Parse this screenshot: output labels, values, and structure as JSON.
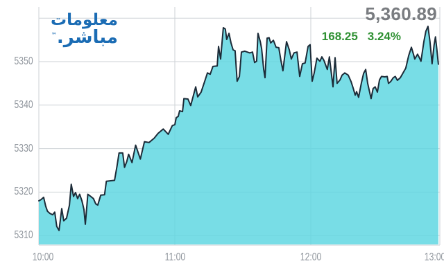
{
  "logo": {
    "line1": "معلومات",
    "line2": "مباشر.",
    "trademark": "™",
    "color": "#1b6cb4"
  },
  "quote": {
    "last_price": "5,360.89",
    "change": "168.25",
    "change_percent": "3.24%",
    "price_color": "#797c80",
    "change_color": "#2e9032"
  },
  "chart_data": {
    "type": "area",
    "title": "",
    "xlabel": "",
    "ylabel": "",
    "x_unit": "minutes after 10:00",
    "x_tick_labels": [
      "10:00",
      "11:00",
      "12:00",
      "13:00"
    ],
    "x_tick_minutes": [
      0,
      60,
      120,
      180
    ],
    "x_grid_minutes": [
      60,
      120
    ],
    "y_ticks": [
      5350,
      5340,
      5330,
      5320,
      5310
    ],
    "y_gridlines": [
      5360,
      5350,
      5340,
      5330,
      5320,
      5310
    ],
    "ylim": [
      5307.5,
      5362.5
    ],
    "xlim_minutes": [
      0,
      177
    ],
    "grid": true,
    "legend": false,
    "fill_color": "rgba(90,214,225,0.82)",
    "line_color": "#1c2b38",
    "grid_color": "#cdd2d6",
    "axis_text_color": "#8f959c",
    "points": [
      [
        0,
        5318.0
      ],
      [
        1.0,
        5318.3
      ],
      [
        2.1,
        5318.8
      ],
      [
        3.0,
        5316.8
      ],
      [
        3.8,
        5315.6
      ],
      [
        4.9,
        5315.1
      ],
      [
        6.1,
        5314.8
      ],
      [
        7.0,
        5315.4
      ],
      [
        7.9,
        5312.1
      ],
      [
        8.9,
        5311.2
      ],
      [
        10.1,
        5316.2
      ],
      [
        11.0,
        5313.4
      ],
      [
        12.2,
        5314.0
      ],
      [
        13.5,
        5317.0
      ],
      [
        14.3,
        5321.8
      ],
      [
        15.3,
        5319.0
      ],
      [
        16.2,
        5319.9
      ],
      [
        17.1,
        5318.5
      ],
      [
        18.0,
        5319.5
      ],
      [
        19.0,
        5318.0
      ],
      [
        19.9,
        5316.0
      ],
      [
        20.5,
        5312.6
      ],
      [
        21.6,
        5319.5
      ],
      [
        22.9,
        5319.0
      ],
      [
        24.1,
        5318.5
      ],
      [
        25.1,
        5317.3
      ],
      [
        26.0,
        5317.0
      ],
      [
        27.3,
        5319.3
      ],
      [
        29.0,
        5319.4
      ],
      [
        29.8,
        5322.5
      ],
      [
        33.4,
        5322.7
      ],
      [
        34.5,
        5326.0
      ],
      [
        35.4,
        5329.0
      ],
      [
        37.0,
        5329.0
      ],
      [
        37.8,
        5325.7
      ],
      [
        38.8,
        5327.0
      ],
      [
        39.6,
        5328.7
      ],
      [
        41.1,
        5326.8
      ],
      [
        42.7,
        5330.8
      ],
      [
        44.8,
        5327.6
      ],
      [
        46.6,
        5331.6
      ],
      [
        48.6,
        5331.4
      ],
      [
        50.9,
        5332.4
      ],
      [
        52.6,
        5333.5
      ],
      [
        54.9,
        5334.5
      ],
      [
        57.1,
        5333.3
      ],
      [
        58.9,
        5335.3
      ],
      [
        60.0,
        5335.5
      ],
      [
        60.6,
        5337.1
      ],
      [
        61.5,
        5337.4
      ],
      [
        62.1,
        5338.7
      ],
      [
        63.4,
        5338.5
      ],
      [
        64.0,
        5341.5
      ],
      [
        65.8,
        5341.4
      ],
      [
        67.0,
        5339.9
      ],
      [
        69.2,
        5344.2
      ],
      [
        70.1,
        5341.9
      ],
      [
        71.6,
        5343.0
      ],
      [
        73.2,
        5345.5
      ],
      [
        74.4,
        5347.4
      ],
      [
        75.6,
        5347.1
      ],
      [
        76.8,
        5348.9
      ],
      [
        78.7,
        5349.0
      ],
      [
        79.3,
        5353.5
      ],
      [
        80.2,
        5350.6
      ],
      [
        81.4,
        5357.8
      ],
      [
        82.3,
        5357.5
      ],
      [
        82.9,
        5355.1
      ],
      [
        83.9,
        5356.5
      ],
      [
        84.8,
        5354.3
      ],
      [
        85.7,
        5352.7
      ],
      [
        86.6,
        5352.5
      ],
      [
        87.5,
        5345.5
      ],
      [
        88.5,
        5346.6
      ],
      [
        89.4,
        5352.2
      ],
      [
        90.9,
        5352.4
      ],
      [
        93.1,
        5352.0
      ],
      [
        94.3,
        5352.2
      ],
      [
        95.2,
        5349.8
      ],
      [
        96.1,
        5350.1
      ],
      [
        96.7,
        5356.5
      ],
      [
        97.7,
        5354.6
      ],
      [
        98.3,
        5353.0
      ],
      [
        99.2,
        5348.2
      ],
      [
        99.8,
        5346.3
      ],
      [
        100.7,
        5355.4
      ],
      [
        101.6,
        5355.5
      ],
      [
        102.3,
        5354.3
      ],
      [
        103.5,
        5354.9
      ],
      [
        104.7,
        5353.3
      ],
      [
        105.9,
        5353.2
      ],
      [
        106.8,
        5350.3
      ],
      [
        107.7,
        5347.9
      ],
      [
        109.3,
        5354.6
      ],
      [
        110.5,
        5352.7
      ],
      [
        111.4,
        5350.6
      ],
      [
        112.6,
        5352.0
      ],
      [
        113.9,
        5352.2
      ],
      [
        115.1,
        5346.6
      ],
      [
        116.3,
        5349.5
      ],
      [
        117.5,
        5349.7
      ],
      [
        118.8,
        5353.5
      ],
      [
        119.7,
        5353.9
      ],
      [
        120.6,
        5345.5
      ],
      [
        121.5,
        5347.4
      ],
      [
        122.7,
        5350.8
      ],
      [
        124.0,
        5350.1
      ],
      [
        124.9,
        5351.1
      ],
      [
        125.8,
        5350.3
      ],
      [
        127.3,
        5348.2
      ],
      [
        128.2,
        5351.1
      ],
      [
        129.8,
        5344.2
      ],
      [
        130.7,
        5350.9
      ],
      [
        131.6,
        5345.0
      ],
      [
        132.9,
        5345.8
      ],
      [
        133.8,
        5346.9
      ],
      [
        135.0,
        5347.4
      ],
      [
        136.5,
        5346.9
      ],
      [
        137.8,
        5345.4
      ],
      [
        138.7,
        5343.9
      ],
      [
        139.6,
        5342.3
      ],
      [
        140.2,
        5343.1
      ],
      [
        141.1,
        5341.8
      ],
      [
        142.3,
        5345.0
      ],
      [
        143.3,
        5347.3
      ],
      [
        144.2,
        5348.2
      ],
      [
        145.1,
        5345.0
      ],
      [
        146.6,
        5341.5
      ],
      [
        147.5,
        5343.8
      ],
      [
        148.4,
        5344.2
      ],
      [
        149.4,
        5343.0
      ],
      [
        150.3,
        5345.8
      ],
      [
        151.2,
        5346.6
      ],
      [
        152.7,
        5346.5
      ],
      [
        153.7,
        5346.6
      ],
      [
        154.3,
        5345.0
      ],
      [
        155.2,
        5345.4
      ],
      [
        156.4,
        5346.3
      ],
      [
        157.3,
        5346.6
      ],
      [
        158.2,
        5345.7
      ],
      [
        159.5,
        5346.3
      ],
      [
        160.7,
        5347.4
      ],
      [
        161.9,
        5348.5
      ],
      [
        163.2,
        5351.4
      ],
      [
        164.4,
        5353.3
      ],
      [
        165.3,
        5351.7
      ],
      [
        165.9,
        5350.6
      ],
      [
        167.1,
        5351.7
      ],
      [
        168.0,
        5350.8
      ],
      [
        168.6,
        5350.1
      ],
      [
        169.9,
        5354.6
      ],
      [
        170.8,
        5357.0
      ],
      [
        171.7,
        5358.1
      ],
      [
        172.6,
        5354.6
      ],
      [
        173.5,
        5349.5
      ],
      [
        174.4,
        5353.8
      ],
      [
        175.0,
        5355.7
      ],
      [
        175.6,
        5353.0
      ],
      [
        176.3,
        5349.4
      ]
    ]
  }
}
